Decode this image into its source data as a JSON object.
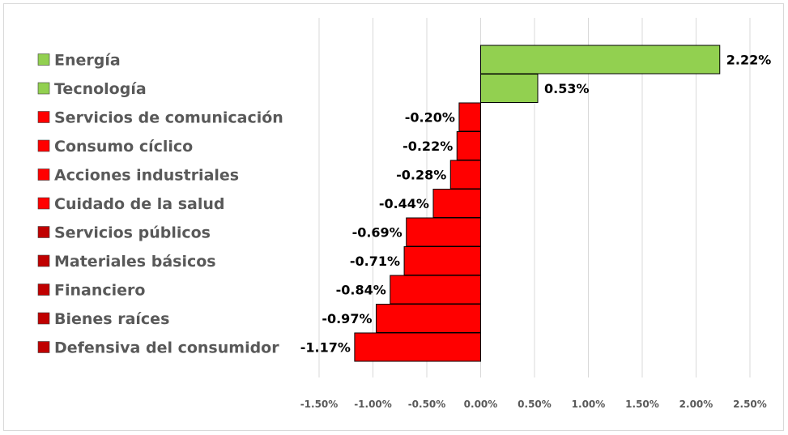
{
  "chart_data": {
    "type": "bar",
    "orientation": "horizontal",
    "title": "",
    "xlabel": "",
    "ylabel": "",
    "categories": [
      "Energía",
      "Tecnología",
      "Servicios de comunicación",
      "Consumo cíclico",
      "Acciones industriales",
      "Cuidado de la salud",
      "Servicios públicos",
      "Materiales básicos",
      "Financiero",
      "Bienes raíces",
      "Defensiva del consumidor"
    ],
    "values": [
      2.22,
      0.53,
      -0.2,
      -0.22,
      -0.28,
      -0.44,
      -0.69,
      -0.71,
      -0.84,
      -0.97,
      -1.17
    ],
    "value_labels": [
      "2.22%",
      "0.53%",
      "-0.20%",
      "-0.22%",
      "-0.28%",
      "-0.44%",
      "-0.69%",
      "-0.71%",
      "-0.84%",
      "-0.97%",
      "-1.17%"
    ],
    "xlim": [
      -1.5,
      2.5
    ],
    "x_ticks": [
      -1.5,
      -1.0,
      -0.5,
      0.0,
      0.5,
      1.0,
      1.5,
      2.0,
      2.5
    ],
    "x_tick_labels": [
      "-1.50%",
      "-1.00%",
      "-0.50%",
      "0.00%",
      "0.50%",
      "1.00%",
      "1.50%",
      "2.00%",
      "2.50%"
    ],
    "grid": "vertical",
    "legend_position": "left",
    "colors": {
      "positive": "#92d050",
      "negative": "#ff0000",
      "negative_legend_dark": "#c00000",
      "bar_outline": "#000000",
      "grid": "#d9d9d9"
    }
  }
}
